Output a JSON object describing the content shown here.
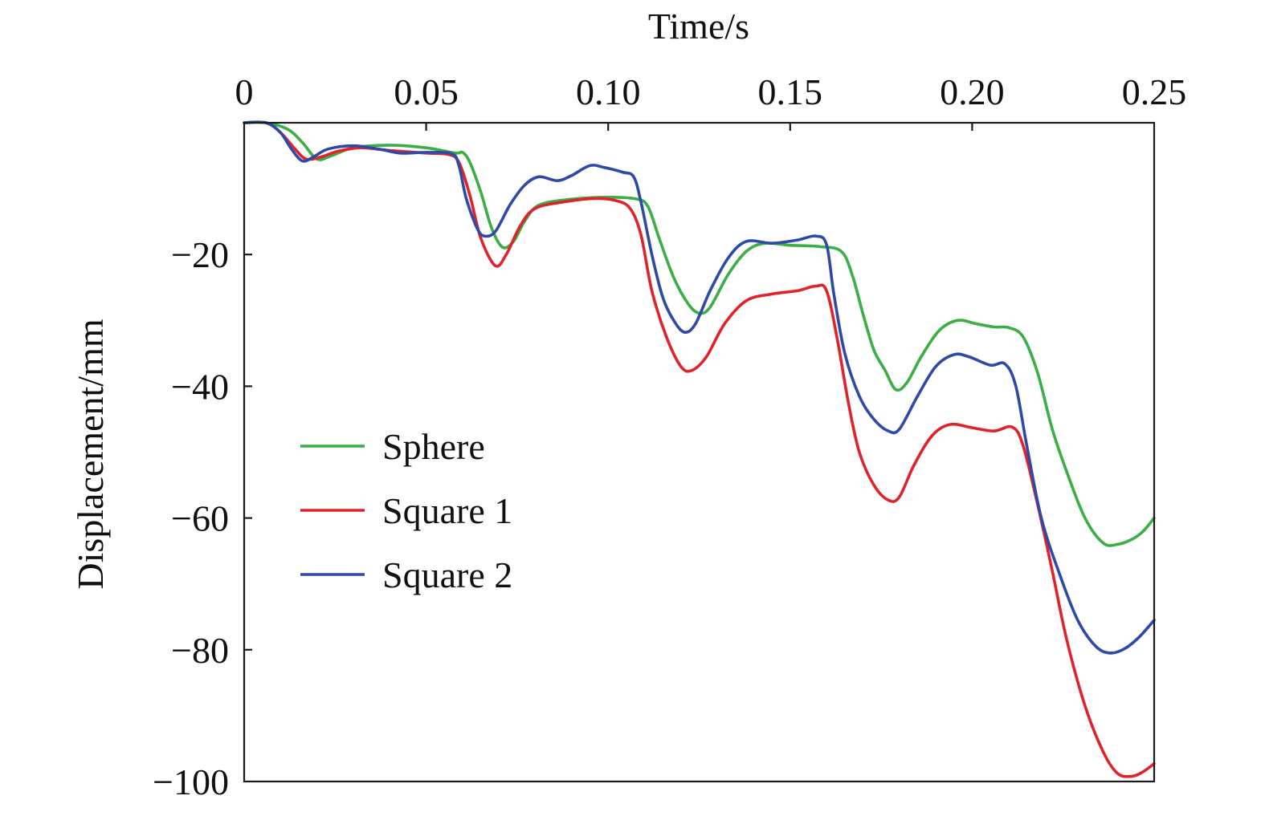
{
  "chart_data": {
    "type": "line",
    "title": "",
    "xlabel": "Time/s",
    "ylabel": "Displacement/mm",
    "xlim": [
      0,
      0.25
    ],
    "ylim": [
      -100,
      0
    ],
    "x_ticks": [
      0,
      0.05,
      0.1,
      0.15,
      0.2,
      0.25
    ],
    "x_tick_labels": [
      "0",
      "0.05",
      "0.10",
      "0.15",
      "0.20",
      "0.25"
    ],
    "y_ticks": [
      -20,
      -40,
      -60,
      -80,
      -100
    ],
    "y_tick_labels": [
      "−20",
      "−40",
      "−60",
      "−80",
      "−100"
    ],
    "x_axis_position": "top",
    "grid": false,
    "legend_position": "center-left",
    "series": [
      {
        "name": "Sphere",
        "color": "#3cae46",
        "points": [
          [
            0.0,
            0.0
          ],
          [
            0.006,
            0.0
          ],
          [
            0.012,
            -1.0
          ],
          [
            0.016,
            -3.0
          ],
          [
            0.02,
            -5.5
          ],
          [
            0.024,
            -5.0
          ],
          [
            0.03,
            -3.8
          ],
          [
            0.04,
            -3.4
          ],
          [
            0.05,
            -3.8
          ],
          [
            0.058,
            -4.6
          ],
          [
            0.06,
            -4.5
          ],
          [
            0.062,
            -6.0
          ],
          [
            0.065,
            -10.5
          ],
          [
            0.068,
            -16.0
          ],
          [
            0.071,
            -18.9
          ],
          [
            0.074,
            -18.0
          ],
          [
            0.077,
            -15.0
          ],
          [
            0.081,
            -12.5
          ],
          [
            0.09,
            -11.6
          ],
          [
            0.1,
            -11.3
          ],
          [
            0.108,
            -11.6
          ],
          [
            0.111,
            -12.8
          ],
          [
            0.114,
            -17.5
          ],
          [
            0.118,
            -23.5
          ],
          [
            0.122,
            -27.5
          ],
          [
            0.125,
            -28.9
          ],
          [
            0.128,
            -28.0
          ],
          [
            0.133,
            -23.0
          ],
          [
            0.138,
            -19.5
          ],
          [
            0.143,
            -18.3
          ],
          [
            0.15,
            -18.6
          ],
          [
            0.158,
            -18.8
          ],
          [
            0.164,
            -19.5
          ],
          [
            0.167,
            -23.0
          ],
          [
            0.17,
            -29.0
          ],
          [
            0.173,
            -34.5
          ],
          [
            0.176,
            -37.5
          ],
          [
            0.179,
            -40.5
          ],
          [
            0.182,
            -39.5
          ],
          [
            0.186,
            -35.5
          ],
          [
            0.191,
            -31.5
          ],
          [
            0.196,
            -30.0
          ],
          [
            0.201,
            -30.5
          ],
          [
            0.206,
            -31.0
          ],
          [
            0.21,
            -31.1
          ],
          [
            0.214,
            -32.5
          ],
          [
            0.218,
            -38.0
          ],
          [
            0.222,
            -46.5
          ],
          [
            0.226,
            -53.0
          ],
          [
            0.231,
            -60.0
          ],
          [
            0.236,
            -63.8
          ],
          [
            0.24,
            -64.0
          ],
          [
            0.244,
            -63.2
          ],
          [
            0.247,
            -62.0
          ],
          [
            0.25,
            -60.0
          ]
        ]
      },
      {
        "name": "Square 1",
        "color": "#e0232b",
        "points": [
          [
            0.0,
            0.0
          ],
          [
            0.006,
            0.0
          ],
          [
            0.01,
            -1.5
          ],
          [
            0.014,
            -4.0
          ],
          [
            0.017,
            -5.5
          ],
          [
            0.021,
            -5.2
          ],
          [
            0.026,
            -4.3
          ],
          [
            0.032,
            -3.8
          ],
          [
            0.04,
            -4.2
          ],
          [
            0.05,
            -4.6
          ],
          [
            0.056,
            -4.8
          ],
          [
            0.059,
            -6.0
          ],
          [
            0.062,
            -11.0
          ],
          [
            0.065,
            -17.5
          ],
          [
            0.069,
            -21.7
          ],
          [
            0.072,
            -20.0
          ],
          [
            0.076,
            -15.5
          ],
          [
            0.08,
            -13.0
          ],
          [
            0.088,
            -12.0
          ],
          [
            0.096,
            -11.5
          ],
          [
            0.102,
            -11.8
          ],
          [
            0.106,
            -13.0
          ],
          [
            0.109,
            -17.0
          ],
          [
            0.112,
            -25.5
          ],
          [
            0.116,
            -32.5
          ],
          [
            0.12,
            -37.0
          ],
          [
            0.123,
            -37.6
          ],
          [
            0.127,
            -35.5
          ],
          [
            0.132,
            -30.5
          ],
          [
            0.138,
            -27.0
          ],
          [
            0.145,
            -26.0
          ],
          [
            0.152,
            -25.5
          ],
          [
            0.157,
            -24.8
          ],
          [
            0.16,
            -25.5
          ],
          [
            0.163,
            -33.0
          ],
          [
            0.166,
            -42.5
          ],
          [
            0.169,
            -50.0
          ],
          [
            0.173,
            -55.0
          ],
          [
            0.177,
            -57.3
          ],
          [
            0.18,
            -56.8
          ],
          [
            0.184,
            -52.0
          ],
          [
            0.189,
            -47.5
          ],
          [
            0.194,
            -45.8
          ],
          [
            0.2,
            -46.3
          ],
          [
            0.206,
            -46.8
          ],
          [
            0.211,
            -46.2
          ],
          [
            0.214,
            -49.0
          ],
          [
            0.218,
            -58.0
          ],
          [
            0.222,
            -68.0
          ],
          [
            0.226,
            -78.5
          ],
          [
            0.231,
            -88.5
          ],
          [
            0.236,
            -95.5
          ],
          [
            0.24,
            -98.8
          ],
          [
            0.244,
            -99.2
          ],
          [
            0.247,
            -98.5
          ],
          [
            0.25,
            -97.3
          ]
        ]
      },
      {
        "name": "Square 2",
        "color": "#2d4aa6",
        "points": [
          [
            0.0,
            0.0
          ],
          [
            0.006,
            0.0
          ],
          [
            0.01,
            -1.5
          ],
          [
            0.013,
            -4.0
          ],
          [
            0.016,
            -5.8
          ],
          [
            0.019,
            -5.2
          ],
          [
            0.023,
            -4.0
          ],
          [
            0.03,
            -3.5
          ],
          [
            0.037,
            -4.0
          ],
          [
            0.043,
            -4.6
          ],
          [
            0.05,
            -4.5
          ],
          [
            0.057,
            -4.7
          ],
          [
            0.059,
            -6.5
          ],
          [
            0.061,
            -11.5
          ],
          [
            0.064,
            -16.0
          ],
          [
            0.066,
            -17.2
          ],
          [
            0.069,
            -16.5
          ],
          [
            0.073,
            -12.5
          ],
          [
            0.077,
            -9.5
          ],
          [
            0.081,
            -8.2
          ],
          [
            0.086,
            -8.8
          ],
          [
            0.09,
            -8.0
          ],
          [
            0.095,
            -6.5
          ],
          [
            0.099,
            -6.8
          ],
          [
            0.104,
            -7.5
          ],
          [
            0.107,
            -8.2
          ],
          [
            0.109,
            -12.0
          ],
          [
            0.112,
            -20.0
          ],
          [
            0.115,
            -26.5
          ],
          [
            0.118,
            -30.0
          ],
          [
            0.121,
            -31.8
          ],
          [
            0.124,
            -30.5
          ],
          [
            0.128,
            -25.5
          ],
          [
            0.133,
            -20.5
          ],
          [
            0.138,
            -18.0
          ],
          [
            0.145,
            -18.3
          ],
          [
            0.152,
            -17.8
          ],
          [
            0.157,
            -17.2
          ],
          [
            0.16,
            -18.5
          ],
          [
            0.162,
            -26.0
          ],
          [
            0.165,
            -35.0
          ],
          [
            0.169,
            -41.5
          ],
          [
            0.173,
            -45.0
          ],
          [
            0.177,
            -46.8
          ],
          [
            0.18,
            -46.5
          ],
          [
            0.185,
            -41.5
          ],
          [
            0.19,
            -37.0
          ],
          [
            0.195,
            -35.2
          ],
          [
            0.199,
            -35.5
          ],
          [
            0.205,
            -36.8
          ],
          [
            0.209,
            -36.6
          ],
          [
            0.212,
            -40.0
          ],
          [
            0.215,
            -49.0
          ],
          [
            0.219,
            -60.0
          ],
          [
            0.224,
            -68.5
          ],
          [
            0.229,
            -75.5
          ],
          [
            0.234,
            -79.5
          ],
          [
            0.238,
            -80.5
          ],
          [
            0.242,
            -79.8
          ],
          [
            0.246,
            -78.0
          ],
          [
            0.25,
            -75.5
          ]
        ]
      }
    ]
  }
}
